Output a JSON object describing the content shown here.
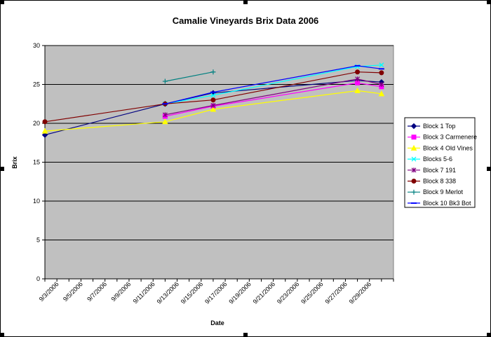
{
  "chart_data": {
    "type": "line",
    "title": "Camalie Vineyards Brix Data 2006",
    "xlabel": "Date",
    "ylabel": "Brix",
    "ylim": [
      0,
      30
    ],
    "yticks": [
      0,
      5,
      10,
      15,
      20,
      25,
      30
    ],
    "xlim": [
      "2006-09-02",
      "2006-10-01"
    ],
    "xtick_labels": [
      "9/3/2006",
      "9/5/2006",
      "9/7/2006",
      "9/9/2006",
      "9/11/2006",
      "9/13/2006",
      "9/15/2006",
      "9/17/2006",
      "9/19/2006",
      "9/21/2006",
      "9/23/2006",
      "9/25/2006",
      "9/27/2006",
      "9/29/2006"
    ],
    "xtick_dates": [
      "2006-09-03",
      "2006-09-05",
      "2006-09-07",
      "2006-09-09",
      "2006-09-11",
      "2006-09-13",
      "2006-09-15",
      "2006-09-17",
      "2006-09-19",
      "2006-09-21",
      "2006-09-23",
      "2006-09-25",
      "2006-09-27",
      "2006-09-29"
    ],
    "grid": "horizontal",
    "plot_background": "#c0c0c0",
    "legend_position": "right",
    "series": [
      {
        "name": "Block 1 Top",
        "color": "#000080",
        "marker": "diamond",
        "points": [
          [
            "2006-09-02",
            18.5
          ],
          [
            "2006-09-12",
            22.5
          ],
          [
            "2006-09-16",
            23.9
          ],
          [
            "2006-09-28",
            25.5
          ],
          [
            "2006-09-30",
            25.3
          ]
        ]
      },
      {
        "name": "Block 3 Carmenere",
        "color": "#ff00ff",
        "marker": "square",
        "points": [
          [
            "2006-09-12",
            20.9
          ],
          [
            "2006-09-16",
            22.2
          ],
          [
            "2006-09-28",
            25.2
          ],
          [
            "2006-09-30",
            24.7
          ]
        ]
      },
      {
        "name": "Block 4 Old Vines",
        "color": "#ffff00",
        "marker": "triangle",
        "points": [
          [
            "2006-09-02",
            19.0
          ],
          [
            "2006-09-12",
            20.2
          ],
          [
            "2006-09-16",
            21.8
          ],
          [
            "2006-09-28",
            24.2
          ],
          [
            "2006-09-30",
            23.8
          ]
        ]
      },
      {
        "name": "Blocks 5-6",
        "color": "#00ffff",
        "marker": "x",
        "points": [
          [
            "2006-09-12",
            22.5
          ],
          [
            "2006-09-16",
            23.6
          ],
          [
            "2006-09-28",
            27.3
          ],
          [
            "2006-09-30",
            27.5
          ]
        ]
      },
      {
        "name": "Block 7 191",
        "color": "#800080",
        "marker": "star",
        "points": [
          [
            "2006-09-12",
            21.1
          ],
          [
            "2006-09-16",
            22.3
          ],
          [
            "2006-09-28",
            25.7
          ],
          [
            "2006-09-30",
            25.0
          ]
        ]
      },
      {
        "name": "Block 8 338",
        "color": "#800000",
        "marker": "circle",
        "points": [
          [
            "2006-09-02",
            20.2
          ],
          [
            "2006-09-12",
            22.5
          ],
          [
            "2006-09-16",
            23.0
          ],
          [
            "2006-09-28",
            26.6
          ],
          [
            "2006-09-30",
            26.5
          ]
        ]
      },
      {
        "name": "Block 9 Merlot",
        "color": "#008080",
        "marker": "plus",
        "points": [
          [
            "2006-09-12",
            25.4
          ],
          [
            "2006-09-16",
            26.6
          ]
        ]
      },
      {
        "name": "Block 10 Bk3 Bot",
        "color": "#0000ff",
        "marker": "dash",
        "points": [
          [
            "2006-09-12",
            22.5
          ],
          [
            "2006-09-16",
            24.0
          ],
          [
            "2006-09-28",
            27.4
          ],
          [
            "2006-09-30",
            27.0
          ]
        ]
      }
    ]
  }
}
